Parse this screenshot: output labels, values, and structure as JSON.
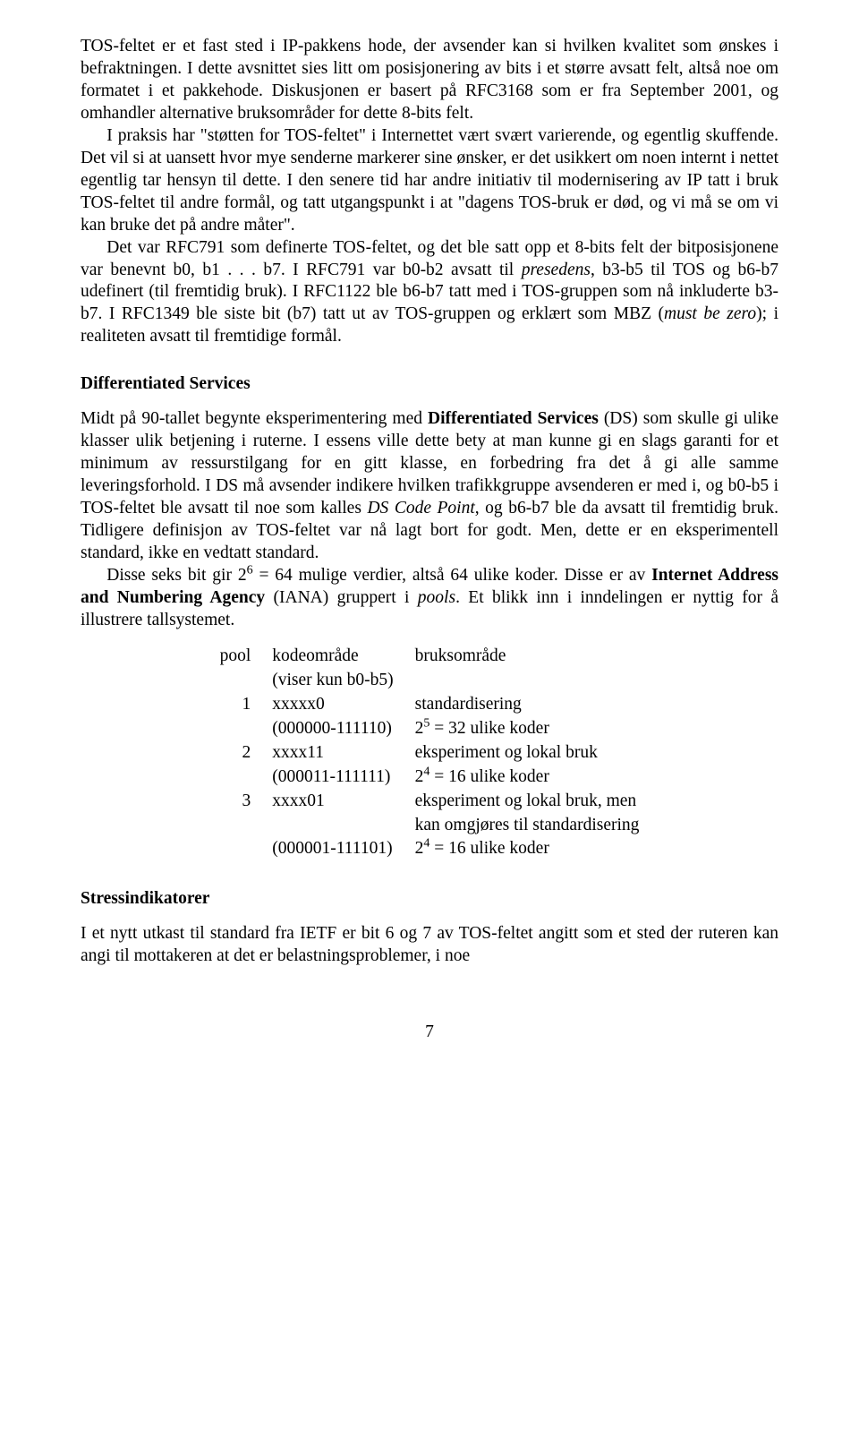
{
  "p1": "TOS-feltet er et fast sted i IP-pakkens hode, der avsender kan si hvilken kvalitet som ønskes i befraktningen. I dette avsnittet sies litt om posisjonering av bits i et større avsatt felt, altså noe om formatet i et pakkehode. Diskusjonen er basert på RFC3168 som er fra September 2001, og omhandler alternative bruksområder for dette 8-bits felt.",
  "p2": "I praksis har \"støtten for TOS-feltet\" i Internettet vært svært varierende, og egentlig skuffende. Det vil si at uansett hvor mye senderne markerer sine ønsker, er det usikkert om noen internt i nettet egentlig tar hensyn til dette. I den senere tid har andre initiativ til modernisering av IP tatt i bruk TOS-feltet til andre formål, og tatt utgangspunkt i at \"dagens TOS-bruk er død, og vi må se om vi kan bruke det på andre måter\".",
  "p3a": "Det var RFC791 som definerte TOS-feltet, og det ble satt opp et 8-bits felt der bitposisjonene var benevnt b0, b1 . . . b7. I RFC791 var b0-b2 avsatt til ",
  "p3_presedens": "presedens",
  "p3b": ", b3-b5 til TOS og b6-b7 udefinert (til fremtidig bruk). I RFC1122 ble b6-b7 tatt med i TOS-gruppen som nå inkluderte b3-b7. I RFC1349 ble siste bit (b7) tatt ut av TOS-gruppen og erklært som MBZ (",
  "p3_must": "must be zero",
  "p3c": "); i realiteten avsatt til fremtidige formål.",
  "h1": "Differentiated Services",
  "p4a": "Midt på 90-tallet begynte eksperimentering med ",
  "p4_ds": "Differentiated Services",
  "p4b": " (DS) som skulle gi ulike klasser ulik betjening i ruterne. I essens ville dette bety at man kunne gi en slags garanti for et minimum av ressurstilgang for en gitt klasse, en forbedring fra det å gi alle samme leveringsforhold. I DS må avsender indikere hvilken trafikkgruppe avsenderen er med i, og b0-b5 i TOS-feltet ble avsatt til noe som kalles ",
  "p4_dscp": "DS Code Point",
  "p4c": ", og b6-b7 ble da avsatt til fremtidig bruk. Tidligere definisjon av TOS-feltet var nå lagt bort for godt. Men, dette er en eksperimentell standard, ikke en vedtatt standard.",
  "p5a": "Disse seks bit gir 2",
  "p5_sup1": "6",
  "p5b": " = 64 mulige verdier, altså 64 ulike koder. Disse er av ",
  "p5_iana": "Internet Address and Numbering Agency",
  "p5c": " (IANA) gruppert i ",
  "p5_pools": "pools",
  "p5d": ". Et blikk inn i inndelingen er nyttig for å illustrere tallsystemet.",
  "table": {
    "h_pool": "pool",
    "h_code": "kodeområde",
    "h_sub": "(viser kun b0-b5)",
    "h_use": "bruksområde",
    "r1_pool": "1",
    "r1_code": "xxxxx0",
    "r1_sub": "(000000-111110)",
    "r1_use": "standardisering",
    "r1_use2a": "2",
    "r1_use2a_sup": "5",
    "r1_use2b": " = 32 ulike koder",
    "r2_pool": "2",
    "r2_code": "xxxx11",
    "r2_sub": "(000011-111111)",
    "r2_use": "eksperiment og lokal bruk",
    "r2_use2a": "2",
    "r2_use2a_sup": "4",
    "r2_use2b": " = 16 ulike koder",
    "r3_pool": "3",
    "r3_code": "xxxx01",
    "r3_sub": "(000001-111101)",
    "r3_use": "eksperiment og lokal bruk, men",
    "r3_use_b": "kan omgjøres til standardisering",
    "r3_use2a": "2",
    "r3_use2a_sup": "4",
    "r3_use2b": " = 16 ulike koder"
  },
  "h2": "Stressindikatorer",
  "p6": "I et nytt utkast til standard fra IETF er bit 6 og 7 av TOS-feltet angitt som et sted der ruteren kan angi til mottakeren at det er belastningsproblemer, i noe",
  "pagenum": "7"
}
